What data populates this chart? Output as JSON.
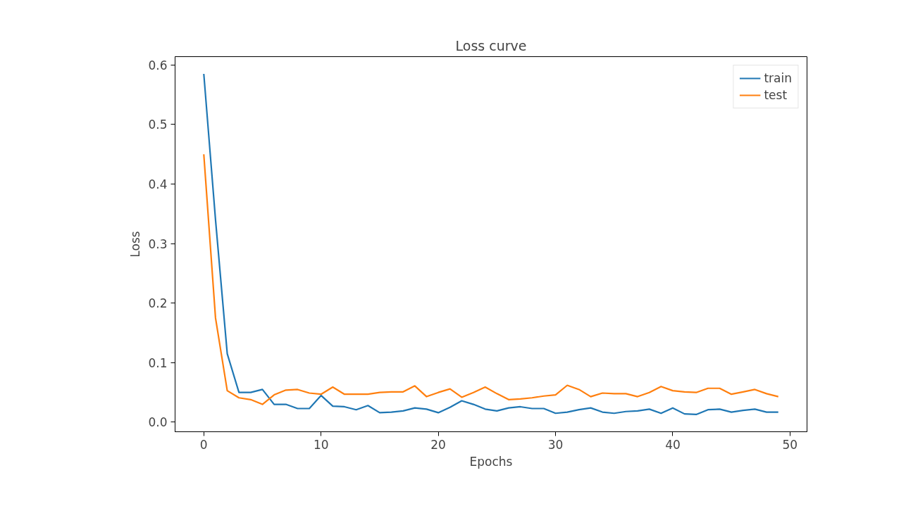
{
  "chart_data": {
    "type": "line",
    "title": "Loss curve",
    "xlabel": "Epochs",
    "ylabel": "Loss",
    "x": [
      0,
      1,
      2,
      3,
      4,
      5,
      6,
      7,
      8,
      9,
      10,
      11,
      12,
      13,
      14,
      15,
      16,
      17,
      18,
      19,
      20,
      21,
      22,
      23,
      24,
      25,
      26,
      27,
      28,
      29,
      30,
      31,
      32,
      33,
      34,
      35,
      36,
      37,
      38,
      39,
      40,
      41,
      42,
      43,
      44,
      45,
      46,
      47,
      48,
      49
    ],
    "series": [
      {
        "name": "train",
        "color": "#1f77b4",
        "values": [
          0.585,
          0.34,
          0.115,
          0.05,
          0.05,
          0.055,
          0.03,
          0.03,
          0.023,
          0.023,
          0.045,
          0.027,
          0.026,
          0.021,
          0.028,
          0.016,
          0.017,
          0.019,
          0.024,
          0.022,
          0.016,
          0.025,
          0.036,
          0.03,
          0.022,
          0.019,
          0.024,
          0.026,
          0.023,
          0.023,
          0.015,
          0.017,
          0.021,
          0.024,
          0.017,
          0.015,
          0.018,
          0.019,
          0.022,
          0.015,
          0.024,
          0.014,
          0.013,
          0.021,
          0.022,
          0.017,
          0.02,
          0.022,
          0.017,
          0.017
        ]
      },
      {
        "name": "test",
        "color": "#ff7f0e",
        "values": [
          0.45,
          0.175,
          0.053,
          0.041,
          0.038,
          0.03,
          0.046,
          0.054,
          0.055,
          0.049,
          0.047,
          0.059,
          0.047,
          0.047,
          0.047,
          0.05,
          0.051,
          0.051,
          0.061,
          0.043,
          0.05,
          0.056,
          0.042,
          0.05,
          0.059,
          0.048,
          0.038,
          0.039,
          0.041,
          0.044,
          0.046,
          0.062,
          0.055,
          0.043,
          0.049,
          0.048,
          0.048,
          0.043,
          0.05,
          0.06,
          0.053,
          0.051,
          0.05,
          0.057,
          0.057,
          0.047,
          0.051,
          0.055,
          0.048,
          0.043
        ]
      }
    ],
    "xlim": [
      -2.45,
      51.45
    ],
    "ylim": [
      -0.016,
      0.614
    ],
    "xticks": [
      0,
      10,
      20,
      30,
      40,
      50
    ],
    "yticks": [
      {
        "value": 0,
        "label": "0.0"
      },
      {
        "value": 0.1,
        "label": "0.1"
      },
      {
        "value": 0.2,
        "label": "0.2"
      },
      {
        "value": 0.3,
        "label": "0.3"
      },
      {
        "value": 0.4,
        "label": "0.4"
      },
      {
        "value": 0.5,
        "label": "0.5"
      },
      {
        "value": 0.6,
        "label": "0.6"
      }
    ],
    "grid": false,
    "legend": "top right",
    "line_style": "solid",
    "marker": "none"
  }
}
